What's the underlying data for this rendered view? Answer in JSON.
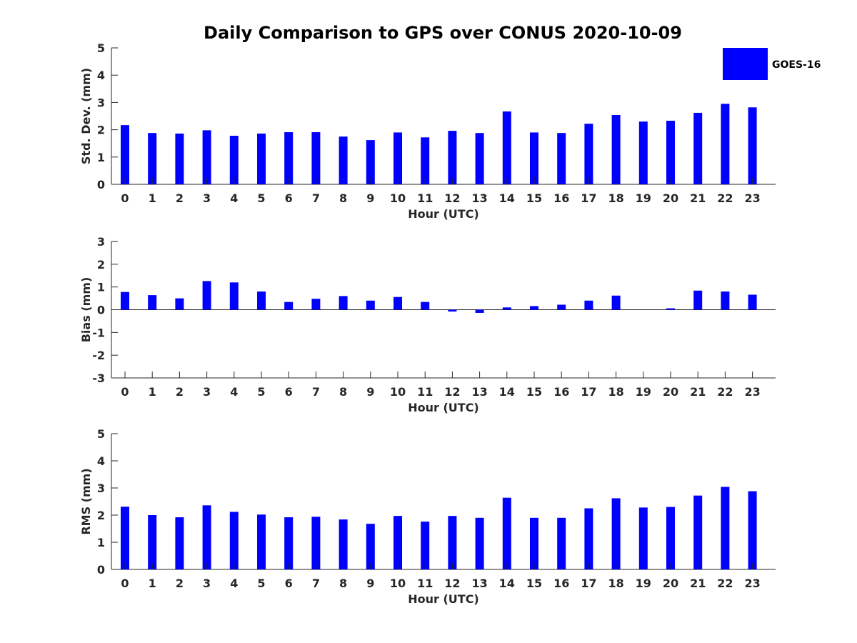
{
  "chart_data": {
    "type": "bar",
    "title": "Daily Comparison to GPS over CONUS 2020-10-09",
    "legend": {
      "entries": [
        "GOES-16"
      ],
      "placement": "top-right"
    },
    "bar_color": "#0000ff",
    "categories": [
      "0",
      "1",
      "2",
      "3",
      "4",
      "5",
      "6",
      "7",
      "8",
      "9",
      "10",
      "11",
      "12",
      "13",
      "14",
      "15",
      "16",
      "17",
      "18",
      "19",
      "20",
      "21",
      "22",
      "23"
    ],
    "panels": [
      {
        "name": "std-dev",
        "xlabel": "Hour (UTC)",
        "ylabel": "Std. Dev. (mm)",
        "ylim": [
          0,
          5
        ],
        "yticks": [
          "0",
          "1",
          "2",
          "3",
          "4",
          "5"
        ],
        "series": [
          {
            "name": "GOES-16",
            "values": [
              2.17,
              1.88,
              1.86,
              1.98,
              1.78,
              1.86,
              1.91,
              1.91,
              1.75,
              1.62,
              1.9,
              1.72,
              1.96,
              1.88,
              2.67,
              1.9,
              1.88,
              2.22,
              2.54,
              2.3,
              2.33,
              2.62,
              2.95,
              2.82
            ]
          }
        ]
      },
      {
        "name": "bias",
        "xlabel": "Hour (UTC)",
        "ylabel": "Bias (mm)",
        "ylim": [
          -3,
          3
        ],
        "yticks": [
          "-3",
          "-2",
          "-1",
          "0",
          "1",
          "2",
          "3"
        ],
        "series": [
          {
            "name": "GOES-16",
            "values": [
              0.78,
              0.64,
              0.5,
              1.26,
              1.2,
              0.8,
              0.34,
              0.48,
              0.6,
              0.4,
              0.56,
              0.34,
              -0.08,
              -0.14,
              0.1,
              0.16,
              0.22,
              0.4,
              0.62,
              0.0,
              0.06,
              0.84,
              0.8,
              0.66
            ]
          }
        ]
      },
      {
        "name": "rms",
        "xlabel": "Hour (UTC)",
        "ylabel": "RMS (mm)",
        "ylim": [
          0,
          5
        ],
        "yticks": [
          "0",
          "1",
          "2",
          "3",
          "4",
          "5"
        ],
        "series": [
          {
            "name": "GOES-16",
            "values": [
              2.31,
              2.0,
              1.92,
              2.36,
              2.12,
              2.02,
              1.92,
              1.94,
              1.84,
              1.68,
              1.97,
              1.76,
              1.97,
              1.9,
              2.64,
              1.9,
              1.9,
              2.25,
              2.62,
              2.28,
              2.3,
              2.72,
              3.04,
              2.88
            ]
          }
        ]
      }
    ]
  }
}
